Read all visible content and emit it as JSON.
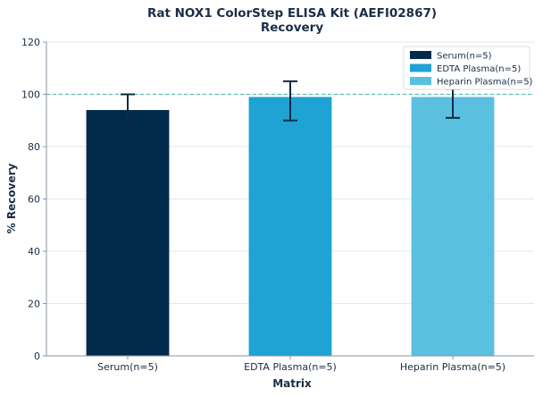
{
  "chart_data": {
    "type": "bar",
    "title_line1": "Rat NOX1 ColorStep ELISA Kit (AEFI02867)",
    "title_line2": "Recovery",
    "xlabel": "Matrix",
    "ylabel": "% Recovery",
    "categories": [
      "Serum(n=5)",
      "EDTA Plasma(n=5)",
      "Heparin Plasma(n=5)"
    ],
    "values": [
      94,
      99,
      99
    ],
    "error_low": [
      6,
      9,
      8
    ],
    "error_high": [
      6,
      6,
      3
    ],
    "colors": [
      "#012a4a",
      "#1fa2d4",
      "#5bbfe0"
    ],
    "ylim": [
      0,
      120
    ],
    "yticks": [
      0,
      20,
      40,
      60,
      80,
      100,
      120
    ],
    "reference_line": 100,
    "reference_line_color": "#5fbfb0",
    "grid": true,
    "legend": {
      "placement": "top-right",
      "entries": [
        "Serum(n=5)",
        "EDTA Plasma(n=5)",
        "Heparin Plasma(n=5)"
      ]
    }
  }
}
